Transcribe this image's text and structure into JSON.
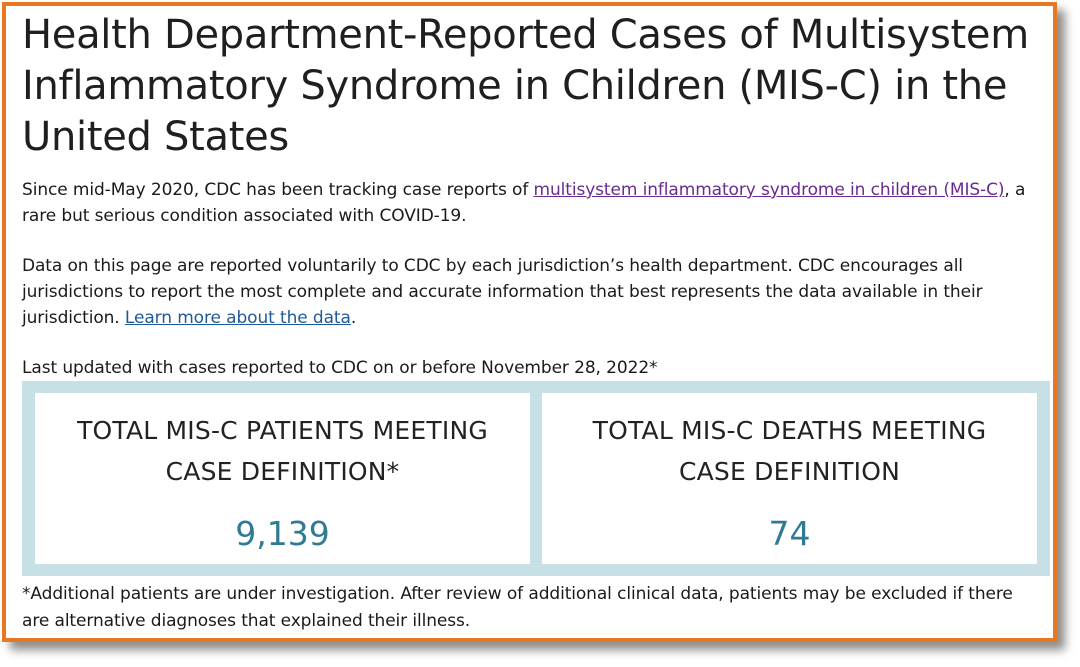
{
  "heading": {
    "title": "Health Department-Reported Cases of Multisystem Inflammatory Syndrome in Children (MIS-C) in the United States"
  },
  "intro": {
    "p1_before": "Since mid-May 2020, CDC has been tracking case reports of ",
    "p1_link": "multisystem inflammatory syndrome in children (MIS-C)",
    "p1_after": ", a rare but serious condition associated with COVID-19.",
    "p2_text": "Data on this page are reported voluntarily to CDC by each jurisdiction’s health department. CDC encourages all jurisdictions to report the most complete and accurate information that best represents the data available in their jurisdiction. ",
    "p2_link": "Learn more about the data",
    "p2_after": ".",
    "p3_text": "Last updated with cases reported to CDC on or before November 28, 2022*"
  },
  "stats": {
    "patients": {
      "title": "TOTAL MIS-C PATIENTS MEETING CASE DEFINITION*",
      "value": "9,139"
    },
    "deaths": {
      "title": "TOTAL MIS-C DEATHS MEETING CASE DEFINITION",
      "value": "74"
    }
  },
  "footnote": {
    "text": "*Additional patients are under investigation. After review of additional clinical data, patients may be excluded if there are alternative diagnoses that explained their illness."
  },
  "colors": {
    "frame_border": "#e87722",
    "stats_background": "#c7e0e6",
    "stat_value": "#2f7a94",
    "visited_link": "#6a2b91",
    "link": "#1f5a98"
  }
}
